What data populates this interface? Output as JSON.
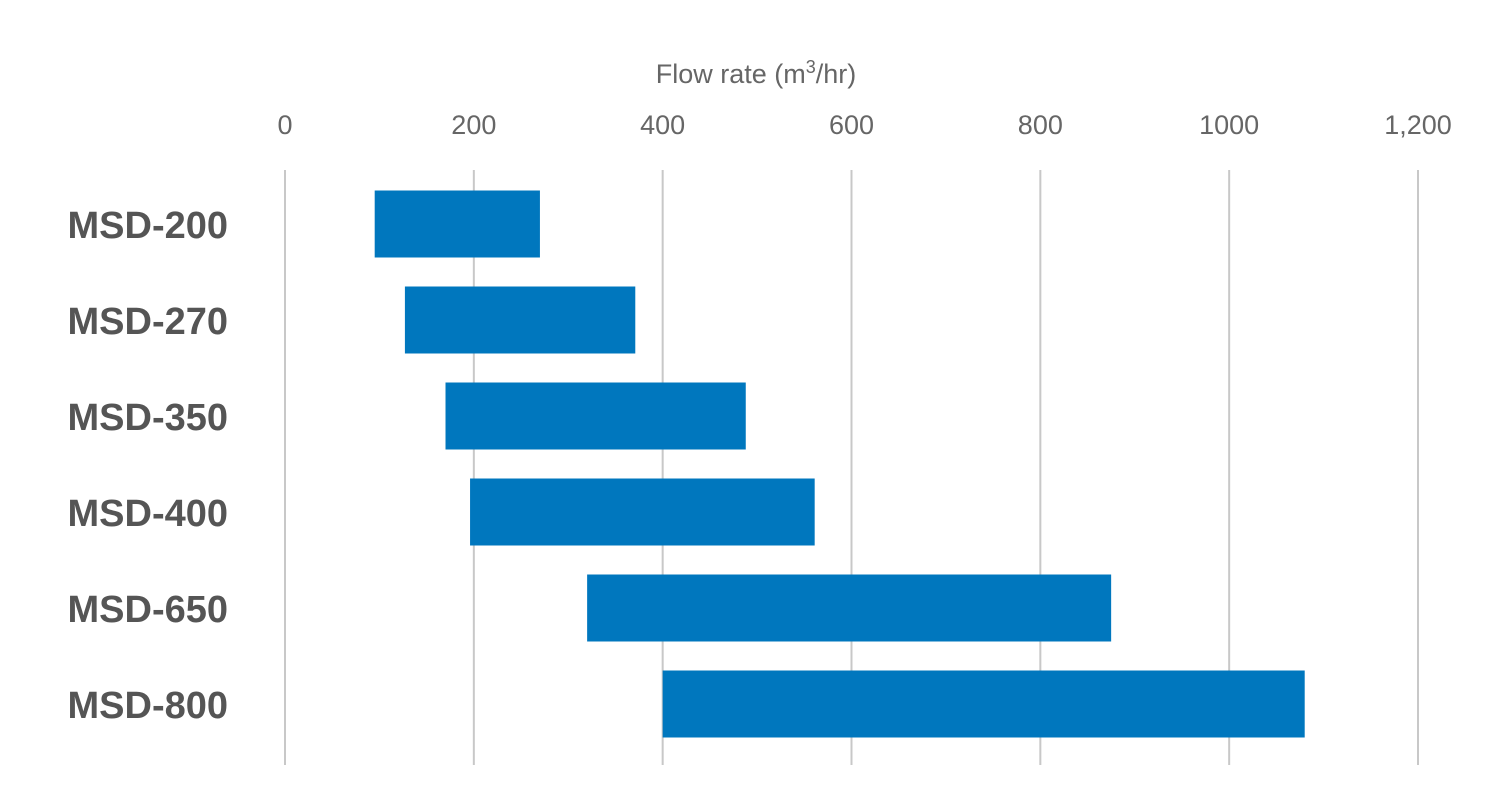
{
  "chart_data": {
    "type": "bar",
    "orientation": "horizontal",
    "style": "floating-range",
    "title": "",
    "xlabel": "Flow rate (m³/hr)",
    "xlabel_parts": {
      "pre": "Flow rate (m",
      "sup": "3",
      "post": "/hr)"
    },
    "ylabel": "",
    "xlim": [
      0,
      1200
    ],
    "x_ticks": [
      0,
      200,
      400,
      600,
      800,
      1000,
      1200
    ],
    "x_tick_labels": [
      "0",
      "200",
      "400",
      "600",
      "800",
      "1000",
      "1,200"
    ],
    "x_axis_position": "top",
    "grid": true,
    "categories": [
      "MSD-200",
      "MSD-270",
      "MSD-350",
      "MSD-400",
      "MSD-650",
      "MSD-800"
    ],
    "series": [
      {
        "ranges": [
          [
            95,
            270
          ],
          [
            127,
            371
          ],
          [
            170,
            488
          ],
          [
            196,
            561
          ],
          [
            320,
            875
          ],
          [
            400,
            1080
          ]
        ]
      }
    ],
    "colors": {
      "bar": "#0077BE",
      "grid": "#C8C8C8",
      "text": "#595959"
    }
  }
}
